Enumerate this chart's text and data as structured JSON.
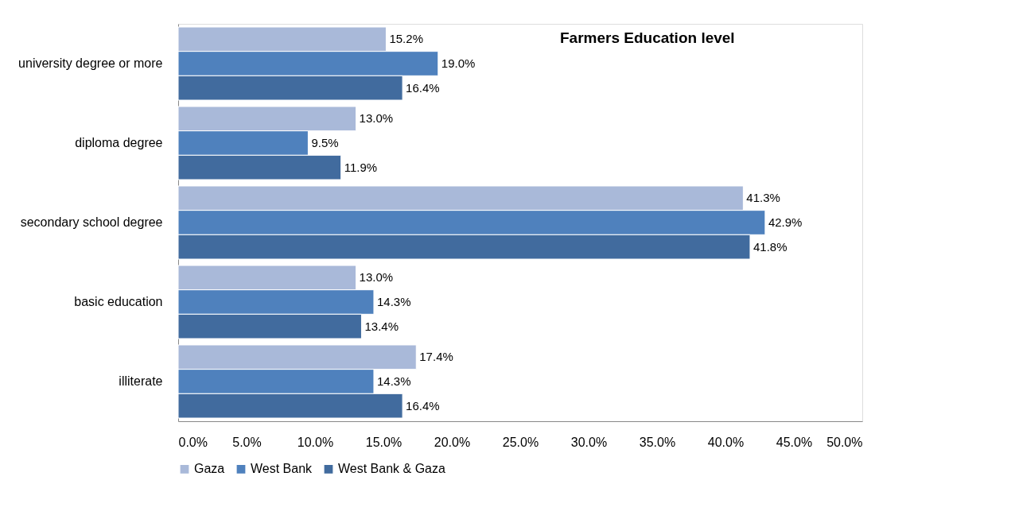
{
  "chart_data": {
    "type": "bar",
    "orientation": "horizontal",
    "title": "Farmers Education level",
    "categories": [
      "university degree or more",
      "diploma degree",
      "secondary school  degree",
      "basic education",
      "illiterate"
    ],
    "series": [
      {
        "name": "Gaza",
        "color": "#a9b9d9",
        "values": [
          15.2,
          13.0,
          41.3,
          13.0,
          17.4
        ],
        "value_labels": [
          "15.2%",
          "13.0%",
          "41.3%",
          "13.0%",
          "17.4%"
        ]
      },
      {
        "name": "West Bank",
        "color": "#4f81bd",
        "values": [
          19.0,
          9.5,
          42.9,
          14.3,
          14.3
        ],
        "value_labels": [
          "19.0%",
          "9.5%",
          "42.9%",
          "14.3%",
          "14.3%"
        ]
      },
      {
        "name": "West Bank & Gaza",
        "color": "#416b9e",
        "values": [
          16.4,
          11.9,
          41.8,
          13.4,
          16.4
        ],
        "value_labels": [
          "16.4%",
          "11.9%",
          "41.8%",
          "13.4%",
          "16.4%"
        ]
      }
    ],
    "xlim": [
      0,
      50
    ],
    "xticks": [
      {
        "value": 0,
        "label": "0.0%"
      },
      {
        "value": 5,
        "label": "5.0%"
      },
      {
        "value": 10,
        "label": "10.0%"
      },
      {
        "value": 15,
        "label": "15.0%"
      },
      {
        "value": 20,
        "label": "20.0%"
      },
      {
        "value": 25,
        "label": "25.0%"
      },
      {
        "value": 30,
        "label": "30.0%"
      },
      {
        "value": 35,
        "label": "35.0%"
      },
      {
        "value": 40,
        "label": "40.0%"
      },
      {
        "value": 45,
        "label": "45.0%"
      },
      {
        "value": 50,
        "label": "50.0%"
      }
    ],
    "legend": "bottom",
    "grid": false
  }
}
